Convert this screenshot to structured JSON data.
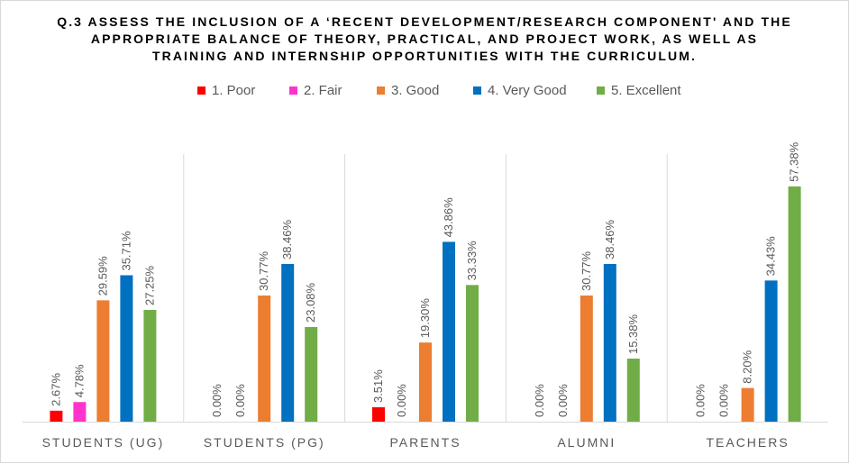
{
  "chart_data": {
    "type": "bar",
    "title": "Q.3 ASSESS THE INCLUSION OF A ‘RECENT DEVELOPMENT/RESEARCH COMPONENT' AND THE APPROPRIATE BALANCE OF THEORY, PRACTICAL, AND PROJECT WORK, AS WELL AS TRAINING AND INTERNSHIP OPPORTUNITIES WITH THE CURRICULUM.",
    "categories": [
      "STUDENTS (UG)",
      "STUDENTS (PG)",
      "PARENTS",
      "ALUMNI",
      "TEACHERS"
    ],
    "series": [
      {
        "name": "1.  Poor",
        "color": "#ff0000",
        "values": [
          2.67,
          0.0,
          3.51,
          0.0,
          0.0
        ],
        "labels": [
          "2.67%",
          "0.00%",
          "3.51%",
          "0.00%",
          "0.00%"
        ]
      },
      {
        "name": "2.  Fair",
        "color": "#ff33cc",
        "values": [
          4.78,
          0.0,
          0.0,
          0.0,
          0.0
        ],
        "labels": [
          "4.78%",
          "0.00%",
          "0.00%",
          "0.00%",
          "0.00%"
        ]
      },
      {
        "name": "3.  Good",
        "color": "#ed7d31",
        "values": [
          29.59,
          30.77,
          19.3,
          30.77,
          8.2
        ],
        "labels": [
          "29.59%",
          "30.77%",
          "19.30%",
          "30.77%",
          "8.20%"
        ]
      },
      {
        "name": "4.  Very Good",
        "color": "#0070c0",
        "values": [
          35.71,
          38.46,
          43.86,
          38.46,
          34.43
        ],
        "labels": [
          "35.71%",
          "38.46%",
          "43.86%",
          "38.46%",
          "34.43%"
        ]
      },
      {
        "name": "5.  Excellent",
        "color": "#70ad47",
        "values": [
          27.25,
          23.08,
          33.33,
          15.38,
          57.38
        ],
        "labels": [
          "27.25%",
          "23.08%",
          "33.33%",
          "15.38%",
          "57.38%"
        ]
      }
    ],
    "ylim": [
      0,
      70
    ],
    "legend_position": "top",
    "gridlines": "vertical category separators"
  }
}
